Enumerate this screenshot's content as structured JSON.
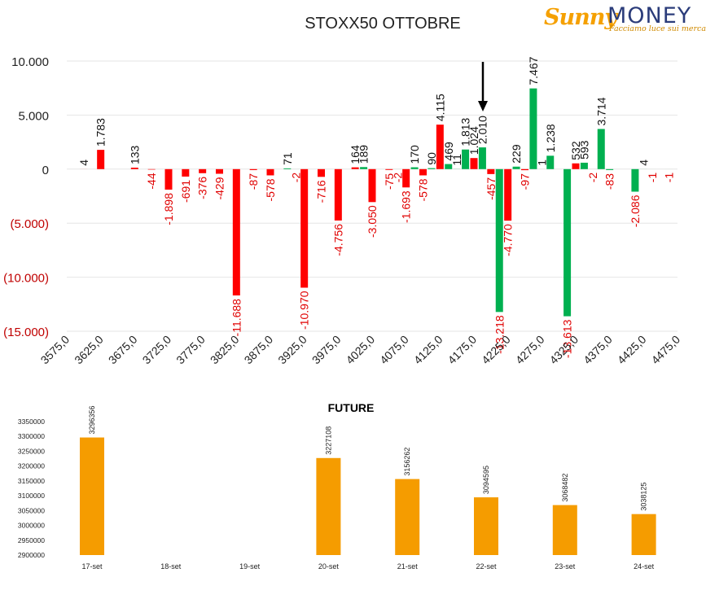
{
  "brand": {
    "logo_sunny": "Sunny",
    "logo_money": "MONEY",
    "tagline": "Facciamo luce sui mercati"
  },
  "colors": {
    "negative": "#ff0000",
    "positive": "#00b050",
    "future_bar": "#f59c00",
    "negative_tick_label": "#c00000"
  },
  "chart_data": [
    {
      "type": "bar",
      "title": "STOXX50 OTTOBRE",
      "x_tick_labels": [
        "3575,0",
        "3625,0",
        "3675,0",
        "3725,0",
        "3775,0",
        "3825,0",
        "3875,0",
        "3925,0",
        "3975,0",
        "4025,0",
        "4075,0",
        "4125,0",
        "4175,0",
        "4225,0",
        "4275,0",
        "4325,0",
        "4375,0",
        "4425,0",
        "4475,0"
      ],
      "y_tick_labels": [
        "10.000",
        "5.000",
        "0",
        "(5.000)",
        "(10.000)",
        "(15.000)"
      ],
      "ylim": [
        -15000,
        10000
      ],
      "xlim": [
        3575,
        4475
      ],
      "grid": true,
      "series": [
        {
          "color": "#ff0000",
          "points": [
            {
              "x": 3600,
              "y": 4,
              "label": "4"
            },
            {
              "x": 3625,
              "y": 1783,
              "label": "1.783"
            },
            {
              "x": 3675,
              "y": 133,
              "label": "133"
            },
            {
              "x": 3700,
              "y": -44,
              "label": "-44"
            },
            {
              "x": 3725,
              "y": -1898,
              "label": "-1.898"
            },
            {
              "x": 3750,
              "y": -691,
              "label": "-691"
            },
            {
              "x": 3775,
              "y": -376,
              "label": "-376"
            },
            {
              "x": 3800,
              "y": -429,
              "label": "-429"
            },
            {
              "x": 3825,
              "y": -11688,
              "label": "-11.688"
            },
            {
              "x": 3850,
              "y": -87,
              "label": "-87"
            },
            {
              "x": 3875,
              "y": -578,
              "label": "-578"
            },
            {
              "x": 3925,
              "y": -10970,
              "label": "-10.970"
            },
            {
              "x": 3950,
              "y": -716,
              "label": "-716"
            },
            {
              "x": 3975,
              "y": -4756,
              "label": "-4.756"
            },
            {
              "x": 4000,
              "y": 164,
              "label": "164"
            },
            {
              "x": 4025,
              "y": -3050,
              "label": "-3.050"
            },
            {
              "x": 4050,
              "y": -75,
              "label": "-75"
            },
            {
              "x": 4075,
              "y": -1693,
              "label": "-1.693"
            },
            {
              "x": 4100,
              "y": -578,
              "label": "-578"
            },
            {
              "x": 4125,
              "y": 4115,
              "label": "4.115"
            },
            {
              "x": 4175,
              "y": 1024,
              "label": "1.024"
            },
            {
              "x": 4200,
              "y": -457,
              "label": "-457"
            },
            {
              "x": 4225,
              "y": -4770,
              "label": "-4.770"
            },
            {
              "x": 4250,
              "y": -97,
              "label": "-97"
            },
            {
              "x": 4275,
              "y": 1,
              "label": "1"
            },
            {
              "x": 4325,
              "y": 532,
              "label": "532"
            },
            {
              "x": 4350,
              "y": -2,
              "label": "-2"
            }
          ]
        },
        {
          "color": "#00b050",
          "points": [
            {
              "x": 3900,
              "y": 71,
              "label": "71"
            },
            {
              "x": 3912.5,
              "y": -2,
              "label": "-2"
            },
            {
              "x": 4012.5,
              "y": 189,
              "label": "189"
            },
            {
              "x": 4062.5,
              "y": -2,
              "label": "-2"
            },
            {
              "x": 4087.5,
              "y": 170,
              "label": "170"
            },
            {
              "x": 4112.5,
              "y": 90,
              "label": "90"
            },
            {
              "x": 4137.5,
              "y": 469,
              "label": "469"
            },
            {
              "x": 4150,
              "y": 11,
              "label": "11"
            },
            {
              "x": 4162.5,
              "y": 1813,
              "label": "1.813"
            },
            {
              "x": 4187.5,
              "y": 2010,
              "label": "2.010"
            },
            {
              "x": 4212.5,
              "y": -13218,
              "label": "-13.218"
            },
            {
              "x": 4237.5,
              "y": 229,
              "label": "229"
            },
            {
              "x": 4262.5,
              "y": 7467,
              "label": "7.467"
            },
            {
              "x": 4287.5,
              "y": 1238,
              "label": "1.238"
            },
            {
              "x": 4312.5,
              "y": -13613,
              "label": "-13.613"
            },
            {
              "x": 4337.5,
              "y": 593,
              "label": "593"
            },
            {
              "x": 4362.5,
              "y": 3714,
              "label": "3.714"
            },
            {
              "x": 4375,
              "y": -83,
              "label": "-83"
            },
            {
              "x": 4412.5,
              "y": -2086,
              "label": "-2.086"
            },
            {
              "x": 4425,
              "y": 4,
              "label": "4"
            },
            {
              "x": 4437.5,
              "y": -1,
              "label": "-1"
            },
            {
              "x": 4462.5,
              "y": -1,
              "label": "-1"
            }
          ]
        }
      ]
    },
    {
      "type": "bar",
      "title": "FUTURE",
      "categories": [
        "17-set",
        "18-set",
        "19-set",
        "20-set",
        "21-set",
        "22-set",
        "23-set",
        "24-set"
      ],
      "values": [
        3296356,
        null,
        null,
        3227108,
        3156262,
        3094595,
        3068482,
        3038125
      ],
      "value_labels": [
        "3296356",
        "",
        "",
        "3227108",
        "3156262",
        "3094595",
        "3068482",
        "3038125"
      ],
      "y_tick_labels": [
        "3350000",
        "3300000",
        "3250000",
        "3200000",
        "3150000",
        "3100000",
        "3050000",
        "3000000",
        "2950000",
        "2900000"
      ],
      "ylim": [
        2900000,
        3350000
      ],
      "grid": false
    }
  ]
}
